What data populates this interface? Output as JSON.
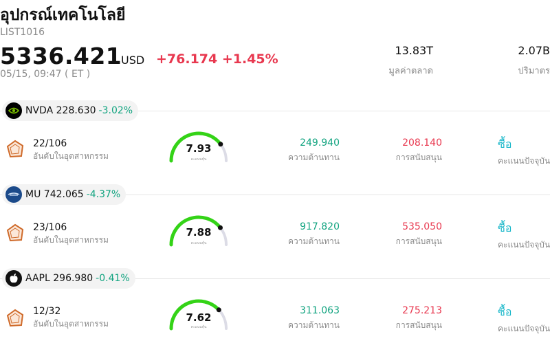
{
  "header": {
    "title": "อุปกรณ์เทคโนโลยี",
    "code": "LIST1016",
    "price": "5336.421",
    "currency": "USD",
    "change": "+76.174 +1.45%",
    "time": "05/15, 09:47  ( ET )",
    "market_cap_value": "13.83T",
    "market_cap_label": "มูลค่าตลาด",
    "volume_value": "2.07B",
    "volume_label": "ปริมาตร"
  },
  "colors": {
    "down_green": "#10a37f",
    "up_red": "#e8384f",
    "gauge_green": "#34d317",
    "gauge_track": "#dcdce6",
    "rating_cyan": "#18b7c9",
    "rank_icon": "#cf6a2a"
  },
  "stocks": [
    {
      "ticker": "NVDA",
      "price": "228.630",
      "change": "-3.02%",
      "logo_icon": "nvidia-logo-icon",
      "rank": "22/106",
      "rank_label": "อันดับในอุตสาหกรรม",
      "score": "7.93",
      "score_fraction": 0.793,
      "score_label": "คะแนนหุ้น",
      "resistance": "249.940",
      "resistance_label": "ความต้านทาน",
      "support": "208.140",
      "support_label": "การสนับสนุน",
      "rating": "ซื้อ",
      "rating_label": "คะแนนปัจจุบัน"
    },
    {
      "ticker": "MU",
      "price": "742.065",
      "change": "-4.37%",
      "logo_icon": "micron-logo-icon",
      "rank": "23/106",
      "rank_label": "อันดับในอุตสาหกรรม",
      "score": "7.88",
      "score_fraction": 0.788,
      "score_label": "คะแนนหุ้น",
      "resistance": "917.820",
      "resistance_label": "ความต้านทาน",
      "support": "535.050",
      "support_label": "การสนับสนุน",
      "rating": "ซื้อ",
      "rating_label": "คะแนนปัจจุบัน"
    },
    {
      "ticker": "AAPL",
      "price": "296.980",
      "change": "-0.41%",
      "logo_icon": "apple-logo-icon",
      "rank": "12/32",
      "rank_label": "อันดับในอุตสาหกรรม",
      "score": "7.62",
      "score_fraction": 0.762,
      "score_label": "คะแนนหุ้น",
      "resistance": "311.063",
      "resistance_label": "ความต้านทาน",
      "support": "275.213",
      "support_label": "การสนับสนุน",
      "rating": "ซื้อ",
      "rating_label": "คะแนนปัจจุบัน"
    }
  ]
}
